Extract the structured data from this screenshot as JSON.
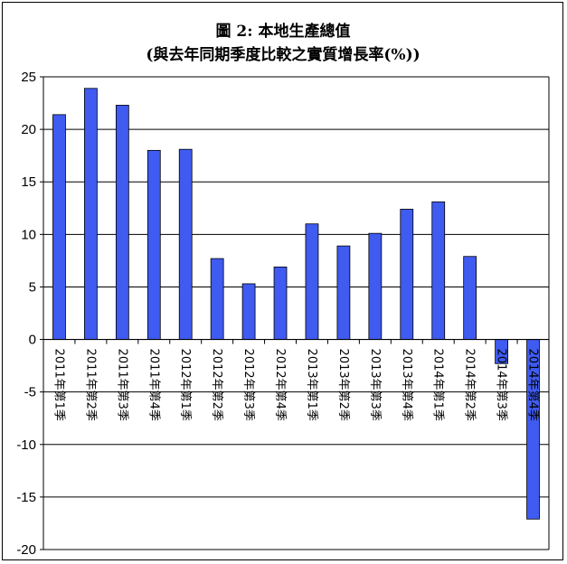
{
  "chart_data": {
    "type": "bar",
    "title": "圖 2: 本地生產總值",
    "subtitle": "(與去年同期季度比較之實質增長率(%))",
    "categories": [
      "2011年第1季",
      "2011年第2季",
      "2011年第3季",
      "2011年第4季",
      "2012年第1季",
      "2012年第2季",
      "2012年第3季",
      "2012年第4季",
      "2013年第1季",
      "2013年第2季",
      "2013年第3季",
      "2013年第4季",
      "2014年第1季",
      "2014年第2季",
      "2014年第3季",
      "2014年第4季"
    ],
    "values": [
      21.4,
      23.9,
      22.3,
      18.0,
      18.1,
      7.7,
      5.3,
      6.9,
      11.0,
      8.9,
      10.1,
      12.4,
      13.1,
      7.9,
      -2.3,
      -17.1
    ],
    "yticks": [
      25,
      20,
      15,
      10,
      5,
      0,
      -5,
      -10,
      -15,
      -20
    ],
    "ylim": [
      -20,
      25
    ],
    "grid": true,
    "bar_color": "#3f5bf0",
    "bar_edge_color": "#000000"
  }
}
